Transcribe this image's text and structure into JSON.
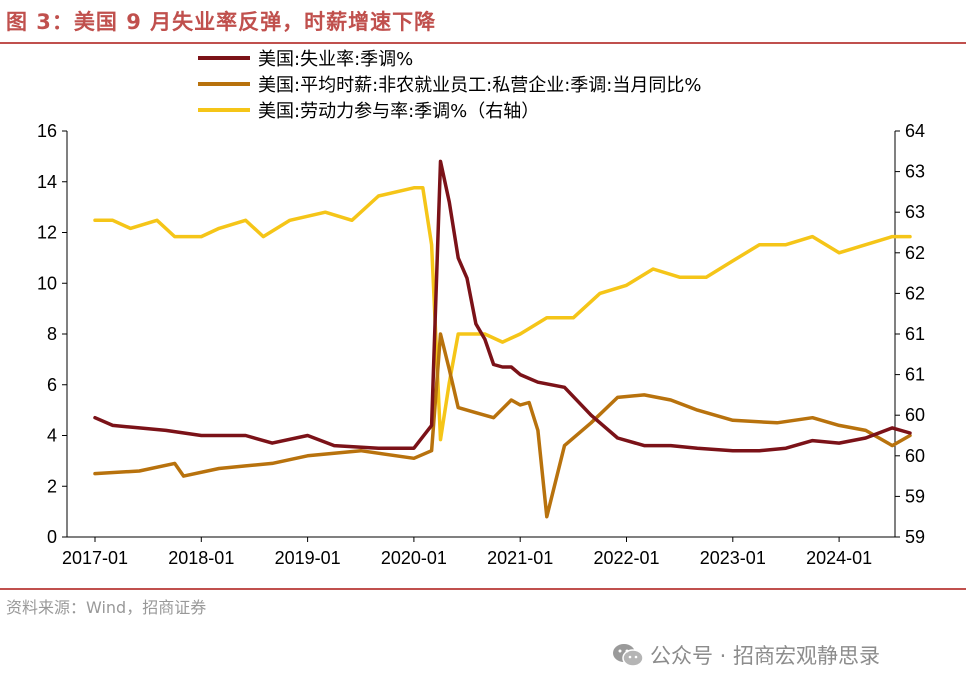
{
  "header": {
    "title": "图 3：美国 9 月失业率反弹，时薪增速下降"
  },
  "footer": {
    "source": "资料来源：Wind，招商证券",
    "watermark": "公众号 · 招商宏观静思录",
    "watermark_icon": "wechat-icon"
  },
  "colors": {
    "accent": "#c0504d",
    "unemployment": "#7b1218",
    "wage": "#b8720d",
    "participation": "#f5c518"
  },
  "chart_data": {
    "type": "line",
    "title": "",
    "xlabel": "",
    "ylabel": "",
    "grid": false,
    "legend_placement": "top",
    "x_ticks": [
      "2017-01",
      "2018-01",
      "2019-01",
      "2020-01",
      "2021-01",
      "2022-01",
      "2023-01",
      "2024-01"
    ],
    "x_range": [
      "2017-01",
      "2024-09"
    ],
    "left_axis": {
      "range": [
        0,
        16
      ],
      "ticks": [
        "0",
        "2",
        "4",
        "6",
        "8",
        "10",
        "12",
        "14",
        "16"
      ]
    },
    "right_axis": {
      "range": [
        59,
        64
      ],
      "ticks": [
        "59",
        "59",
        "60",
        "60",
        "61",
        "61",
        "62",
        "62",
        "63",
        "63",
        "64"
      ]
    },
    "series": [
      {
        "name": "美国:失业率:季调%",
        "axis": "left",
        "x": [
          "2017-01",
          "2017-03",
          "2017-06",
          "2017-09",
          "2018-01",
          "2018-06",
          "2018-09",
          "2019-01",
          "2019-04",
          "2019-09",
          "2020-01",
          "2020-03",
          "2020-04",
          "2020-05",
          "2020-06",
          "2020-07",
          "2020-08",
          "2020-09",
          "2020-10",
          "2020-11",
          "2020-12",
          "2021-01",
          "2021-03",
          "2021-06",
          "2021-09",
          "2021-12",
          "2022-03",
          "2022-06",
          "2022-09",
          "2023-01",
          "2023-04",
          "2023-07",
          "2023-10",
          "2024-01",
          "2024-04",
          "2024-07",
          "2024-09"
        ],
        "values": [
          4.7,
          4.4,
          4.3,
          4.2,
          4.0,
          4.0,
          3.7,
          4.0,
          3.6,
          3.5,
          3.5,
          4.4,
          14.8,
          13.2,
          11.0,
          10.2,
          8.4,
          7.8,
          6.8,
          6.7,
          6.7,
          6.4,
          6.1,
          5.9,
          4.8,
          3.9,
          3.6,
          3.6,
          3.5,
          3.4,
          3.4,
          3.5,
          3.8,
          3.7,
          3.9,
          4.3,
          4.1
        ]
      },
      {
        "name": "美国:平均时薪:非农就业员工:私营企业:季调:当月同比%",
        "axis": "left",
        "x": [
          "2017-01",
          "2017-06",
          "2017-10",
          "2017-11",
          "2018-03",
          "2018-06",
          "2018-09",
          "2019-01",
          "2019-04",
          "2019-07",
          "2020-01",
          "2020-03",
          "2020-04",
          "2020-05",
          "2020-06",
          "2020-08",
          "2020-10",
          "2020-12",
          "2021-01",
          "2021-02",
          "2021-03",
          "2021-04",
          "2021-06",
          "2021-09",
          "2021-12",
          "2022-03",
          "2022-06",
          "2022-09",
          "2023-01",
          "2023-06",
          "2023-10",
          "2024-01",
          "2024-04",
          "2024-07",
          "2024-09"
        ],
        "values": [
          2.5,
          2.6,
          2.9,
          2.4,
          2.7,
          2.8,
          2.9,
          3.2,
          3.3,
          3.4,
          3.1,
          3.4,
          8.0,
          6.6,
          5.1,
          4.9,
          4.7,
          5.4,
          5.2,
          5.3,
          4.2,
          0.8,
          3.6,
          4.5,
          5.5,
          5.6,
          5.4,
          5.0,
          4.6,
          4.5,
          4.7,
          4.4,
          4.2,
          3.6,
          4.0
        ]
      },
      {
        "name": "美国:劳动力参与率:季调%（右轴）",
        "axis": "right",
        "x": [
          "2017-01",
          "2017-03",
          "2017-05",
          "2017-08",
          "2017-10",
          "2018-01",
          "2018-03",
          "2018-06",
          "2018-08",
          "2018-11",
          "2019-03",
          "2019-06",
          "2019-09",
          "2020-01",
          "2020-02",
          "2020-03",
          "2020-04",
          "2020-05",
          "2020-06",
          "2020-09",
          "2020-11",
          "2021-01",
          "2021-04",
          "2021-07",
          "2021-10",
          "2022-01",
          "2022-04",
          "2022-07",
          "2022-10",
          "2023-01",
          "2023-04",
          "2023-07",
          "2023-10",
          "2024-01",
          "2024-04",
          "2024-07",
          "2024-09"
        ],
        "values": [
          62.9,
          62.9,
          62.8,
          62.9,
          62.7,
          62.7,
          62.8,
          62.9,
          62.7,
          62.9,
          63.0,
          62.9,
          63.2,
          63.3,
          63.3,
          62.6,
          60.2,
          60.9,
          61.5,
          61.5,
          61.4,
          61.5,
          61.7,
          61.7,
          62.0,
          62.1,
          62.3,
          62.2,
          62.2,
          62.4,
          62.6,
          62.6,
          62.7,
          62.5,
          62.6,
          62.7,
          62.7
        ]
      }
    ]
  }
}
